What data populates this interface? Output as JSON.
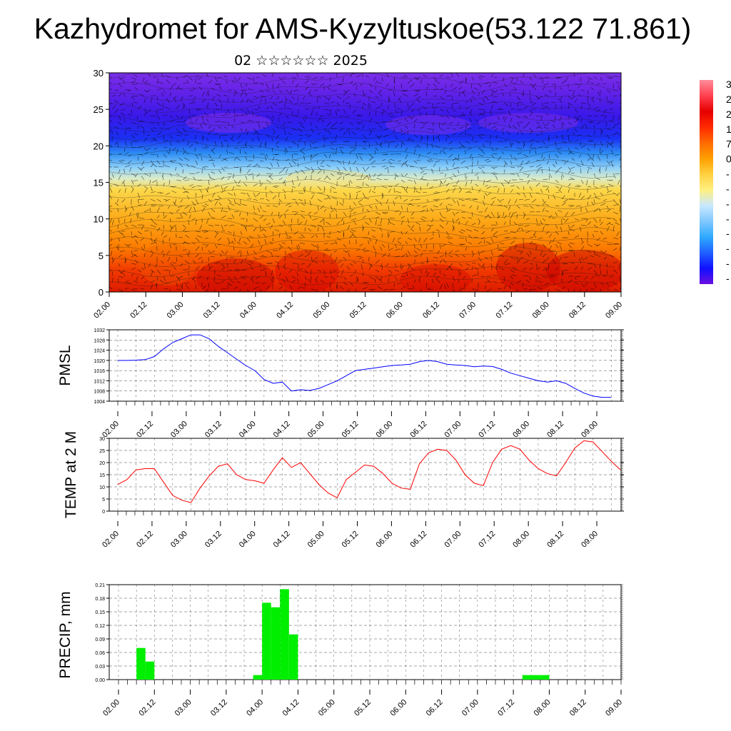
{
  "title": "Kazhydromet for AMS-Kyzyltuskoe(53.122 71.861)",
  "subtitle": "02 ☆☆☆☆☆☆ 2025",
  "time_ticks": [
    "02.00",
    "02.12",
    "03.00",
    "03.12",
    "04.00",
    "04.12",
    "05.00",
    "05.12",
    "06.00",
    "06.12",
    "07.00",
    "07.12",
    "08.00",
    "08.12",
    "09.00"
  ],
  "colorbar": {
    "labels": [
      "3",
      "2",
      "2",
      "1",
      "7",
      "0",
      "-",
      "-",
      "-",
      "-",
      "-",
      "-",
      "-",
      "-"
    ],
    "colors": [
      "#ff8c9a",
      "#ff4050",
      "#e60000",
      "#ff2a00",
      "#ff6a00",
      "#ffa000",
      "#ffd040",
      "#fff080",
      "#c8e8ff",
      "#80c8ff",
      "#2eaaff",
      "#2060ff",
      "#1010ff",
      "#6a10e0"
    ]
  },
  "chart_data": [
    {
      "type": "heatmap",
      "name": "cross-section",
      "ylim": [
        0,
        30
      ],
      "yticks": [
        0,
        5,
        10,
        15,
        20,
        25,
        30
      ],
      "xlim": [
        0,
        168
      ],
      "color_levels": [
        {
          "y": 0,
          "color": "#dd1a00"
        },
        {
          "y": 3,
          "color": "#f23a00"
        },
        {
          "y": 6,
          "color": "#fb7a00"
        },
        {
          "y": 10,
          "color": "#fdaa18"
        },
        {
          "y": 14,
          "color": "#fcd84a"
        },
        {
          "y": 15.5,
          "color": "#dcecc8"
        },
        {
          "y": 17,
          "color": "#8ed0f8"
        },
        {
          "y": 19,
          "color": "#2c8cf4"
        },
        {
          "y": 21,
          "color": "#1a30f4"
        },
        {
          "y": 24,
          "color": "#3818e8"
        },
        {
          "y": 28,
          "color": "#6a24e8"
        },
        {
          "y": 30,
          "color": "#7a30e8"
        }
      ]
    },
    {
      "type": "line",
      "ylabel": "PMSL",
      "ylim": [
        1004,
        1032
      ],
      "yticks": [
        1004,
        1008,
        1012,
        1016,
        1020,
        1024,
        1028,
        1032
      ],
      "color": "#0000ff",
      "x": [
        0,
        3,
        6,
        9,
        12,
        15,
        18,
        21,
        24,
        27,
        30,
        33,
        36,
        39,
        42,
        45,
        48,
        51,
        54,
        57,
        60,
        63,
        66,
        69,
        72,
        75,
        78,
        81,
        84,
        87,
        90,
        93,
        96,
        99,
        102,
        105,
        108,
        111,
        114,
        117,
        120,
        123,
        126,
        129,
        132,
        135,
        138,
        141,
        144,
        147,
        150,
        153,
        156,
        159,
        162
      ],
      "values": [
        1020,
        1020,
        1020.1,
        1020.3,
        1021.5,
        1024.5,
        1027,
        1028.5,
        1030,
        1030,
        1028.5,
        1025.5,
        1023,
        1020.5,
        1018,
        1016,
        1012.5,
        1011,
        1011.5,
        1008,
        1008.5,
        1008.2,
        1009,
        1010.5,
        1012,
        1014,
        1016,
        1016.5,
        1017,
        1017.5,
        1018,
        1018.2,
        1018.5,
        1019.5,
        1020,
        1019.5,
        1018.5,
        1018.2,
        1018,
        1017.5,
        1017.8,
        1017.6,
        1016.5,
        1015,
        1014,
        1013,
        1012,
        1011.5,
        1012,
        1011,
        1009,
        1007.2,
        1006,
        1005.5,
        1005.5
      ]
    },
    {
      "type": "line",
      "ylabel": "TEMP at 2 M",
      "ylim": [
        0,
        30
      ],
      "yticks": [
        0,
        5,
        10,
        15,
        20,
        25,
        30
      ],
      "color": "#ff0000",
      "x": [
        0,
        3,
        6,
        9,
        12,
        15,
        18,
        21,
        24,
        27,
        30,
        33,
        36,
        39,
        42,
        45,
        48,
        51,
        54,
        57,
        60,
        63,
        66,
        69,
        72,
        75,
        78,
        81,
        84,
        87,
        90,
        93,
        96,
        99,
        102,
        105,
        108,
        111,
        114,
        117,
        120,
        123,
        126,
        129,
        132,
        135,
        138,
        141,
        144,
        147,
        150,
        153,
        156,
        159,
        162,
        165
      ],
      "values": [
        11,
        13,
        17,
        17.5,
        17.5,
        12,
        6.5,
        4.5,
        3.5,
        9.5,
        14.5,
        18.5,
        19.5,
        15,
        13,
        12.5,
        11.5,
        17,
        22,
        18,
        20,
        15.5,
        11,
        7.5,
        5.5,
        13,
        16,
        19,
        18.5,
        15.5,
        11.5,
        9.5,
        9,
        19.5,
        24,
        25.5,
        25,
        21,
        15,
        11.5,
        10.5,
        20,
        25.5,
        27,
        25.5,
        21,
        17.5,
        15.5,
        14.5,
        20,
        26,
        29,
        28.5,
        24.5,
        20.5,
        17
      ]
    },
    {
      "type": "bar",
      "ylabel": "PRECIP, mm",
      "ylim": [
        0,
        0.21
      ],
      "yticks": [
        0.0,
        0.03,
        0.06,
        0.09,
        0.12,
        0.15,
        0.18,
        0.21
      ],
      "color": "#00ee00",
      "bar_width_hours": 3,
      "x": [
        6,
        9,
        45,
        48,
        51,
        54,
        57,
        135,
        138,
        141
      ],
      "values": [
        0.07,
        0.04,
        0.01,
        0.17,
        0.16,
        0.2,
        0.1,
        0.01,
        0.01,
        0.01
      ]
    }
  ]
}
